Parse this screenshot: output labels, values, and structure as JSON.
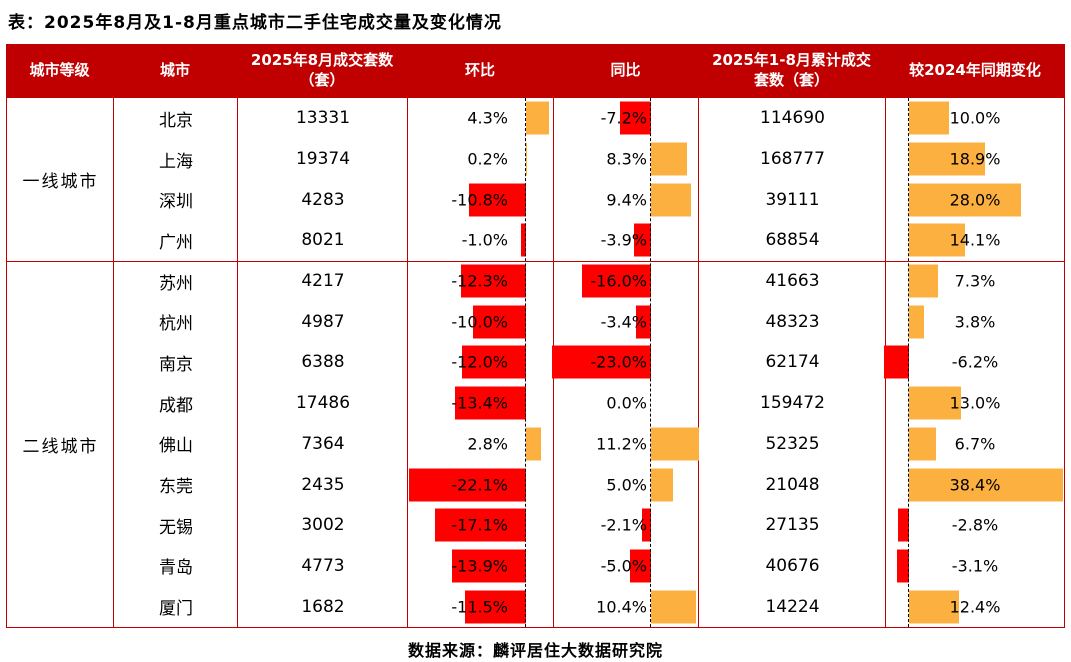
{
  "title": "表：2025年8月及1-8月重点城市二手住宅成交量及变化情况",
  "footer": "数据来源：麟评居住大数据研究院",
  "colors": {
    "header_bg": "#C00000",
    "table_border": "#C00000",
    "bar_positive": "#FBB040",
    "bar_negative": "#FF0000",
    "header_text": "#FFFFFF",
    "body_text": "#000000",
    "background": "#FFFFFF"
  },
  "chart_data": {
    "type": "table",
    "columns": [
      "城市等级",
      "城市",
      "2025年8月成交套数（套）",
      "环比",
      "同比",
      "2025年1-8月累计成交套数（套）",
      "较2024年同期变化"
    ],
    "value_format": "percent_one_decimal",
    "bar_columns": [
      "环比",
      "同比",
      "较2024年同期变化"
    ],
    "groups": [
      {
        "tier": "一线城市",
        "rows": [
          {
            "city": "北京",
            "aug_units": 13331,
            "mom_pct": 4.3,
            "yoy_pct": -7.2,
            "cum_units": 114690,
            "cum_change_pct": 10.0
          },
          {
            "city": "上海",
            "aug_units": 19374,
            "mom_pct": 0.2,
            "yoy_pct": 8.3,
            "cum_units": 168777,
            "cum_change_pct": 18.9
          },
          {
            "city": "深圳",
            "aug_units": 4283,
            "mom_pct": -10.8,
            "yoy_pct": 9.4,
            "cum_units": 39111,
            "cum_change_pct": 28.0
          },
          {
            "city": "广州",
            "aug_units": 8021,
            "mom_pct": -1.0,
            "yoy_pct": -3.9,
            "cum_units": 68854,
            "cum_change_pct": 14.1
          }
        ]
      },
      {
        "tier": "二线城市",
        "rows": [
          {
            "city": "苏州",
            "aug_units": 4217,
            "mom_pct": -12.3,
            "yoy_pct": -16.0,
            "cum_units": 41663,
            "cum_change_pct": 7.3
          },
          {
            "city": "杭州",
            "aug_units": 4987,
            "mom_pct": -10.0,
            "yoy_pct": -3.4,
            "cum_units": 48323,
            "cum_change_pct": 3.8
          },
          {
            "city": "南京",
            "aug_units": 6388,
            "mom_pct": -12.0,
            "yoy_pct": -23.0,
            "cum_units": 62174,
            "cum_change_pct": -6.2
          },
          {
            "city": "成都",
            "aug_units": 17486,
            "mom_pct": -13.4,
            "yoy_pct": 0.0,
            "cum_units": 159472,
            "cum_change_pct": 13.0
          },
          {
            "city": "佛山",
            "aug_units": 7364,
            "mom_pct": 2.8,
            "yoy_pct": 11.2,
            "cum_units": 52325,
            "cum_change_pct": 6.7
          },
          {
            "city": "东莞",
            "aug_units": 2435,
            "mom_pct": -22.1,
            "yoy_pct": 5.0,
            "cum_units": 21048,
            "cum_change_pct": 38.4
          },
          {
            "city": "无锡",
            "aug_units": 3002,
            "mom_pct": -17.1,
            "yoy_pct": -2.1,
            "cum_units": 27135,
            "cum_change_pct": -2.8
          },
          {
            "city": "青岛",
            "aug_units": 4773,
            "mom_pct": -13.9,
            "yoy_pct": -5.0,
            "cum_units": 40676,
            "cum_change_pct": -3.1
          },
          {
            "city": "厦门",
            "aug_units": 1682,
            "mom_pct": -11.5,
            "yoy_pct": 10.4,
            "cum_units": 14224,
            "cum_change_pct": 12.4
          }
        ]
      }
    ]
  }
}
